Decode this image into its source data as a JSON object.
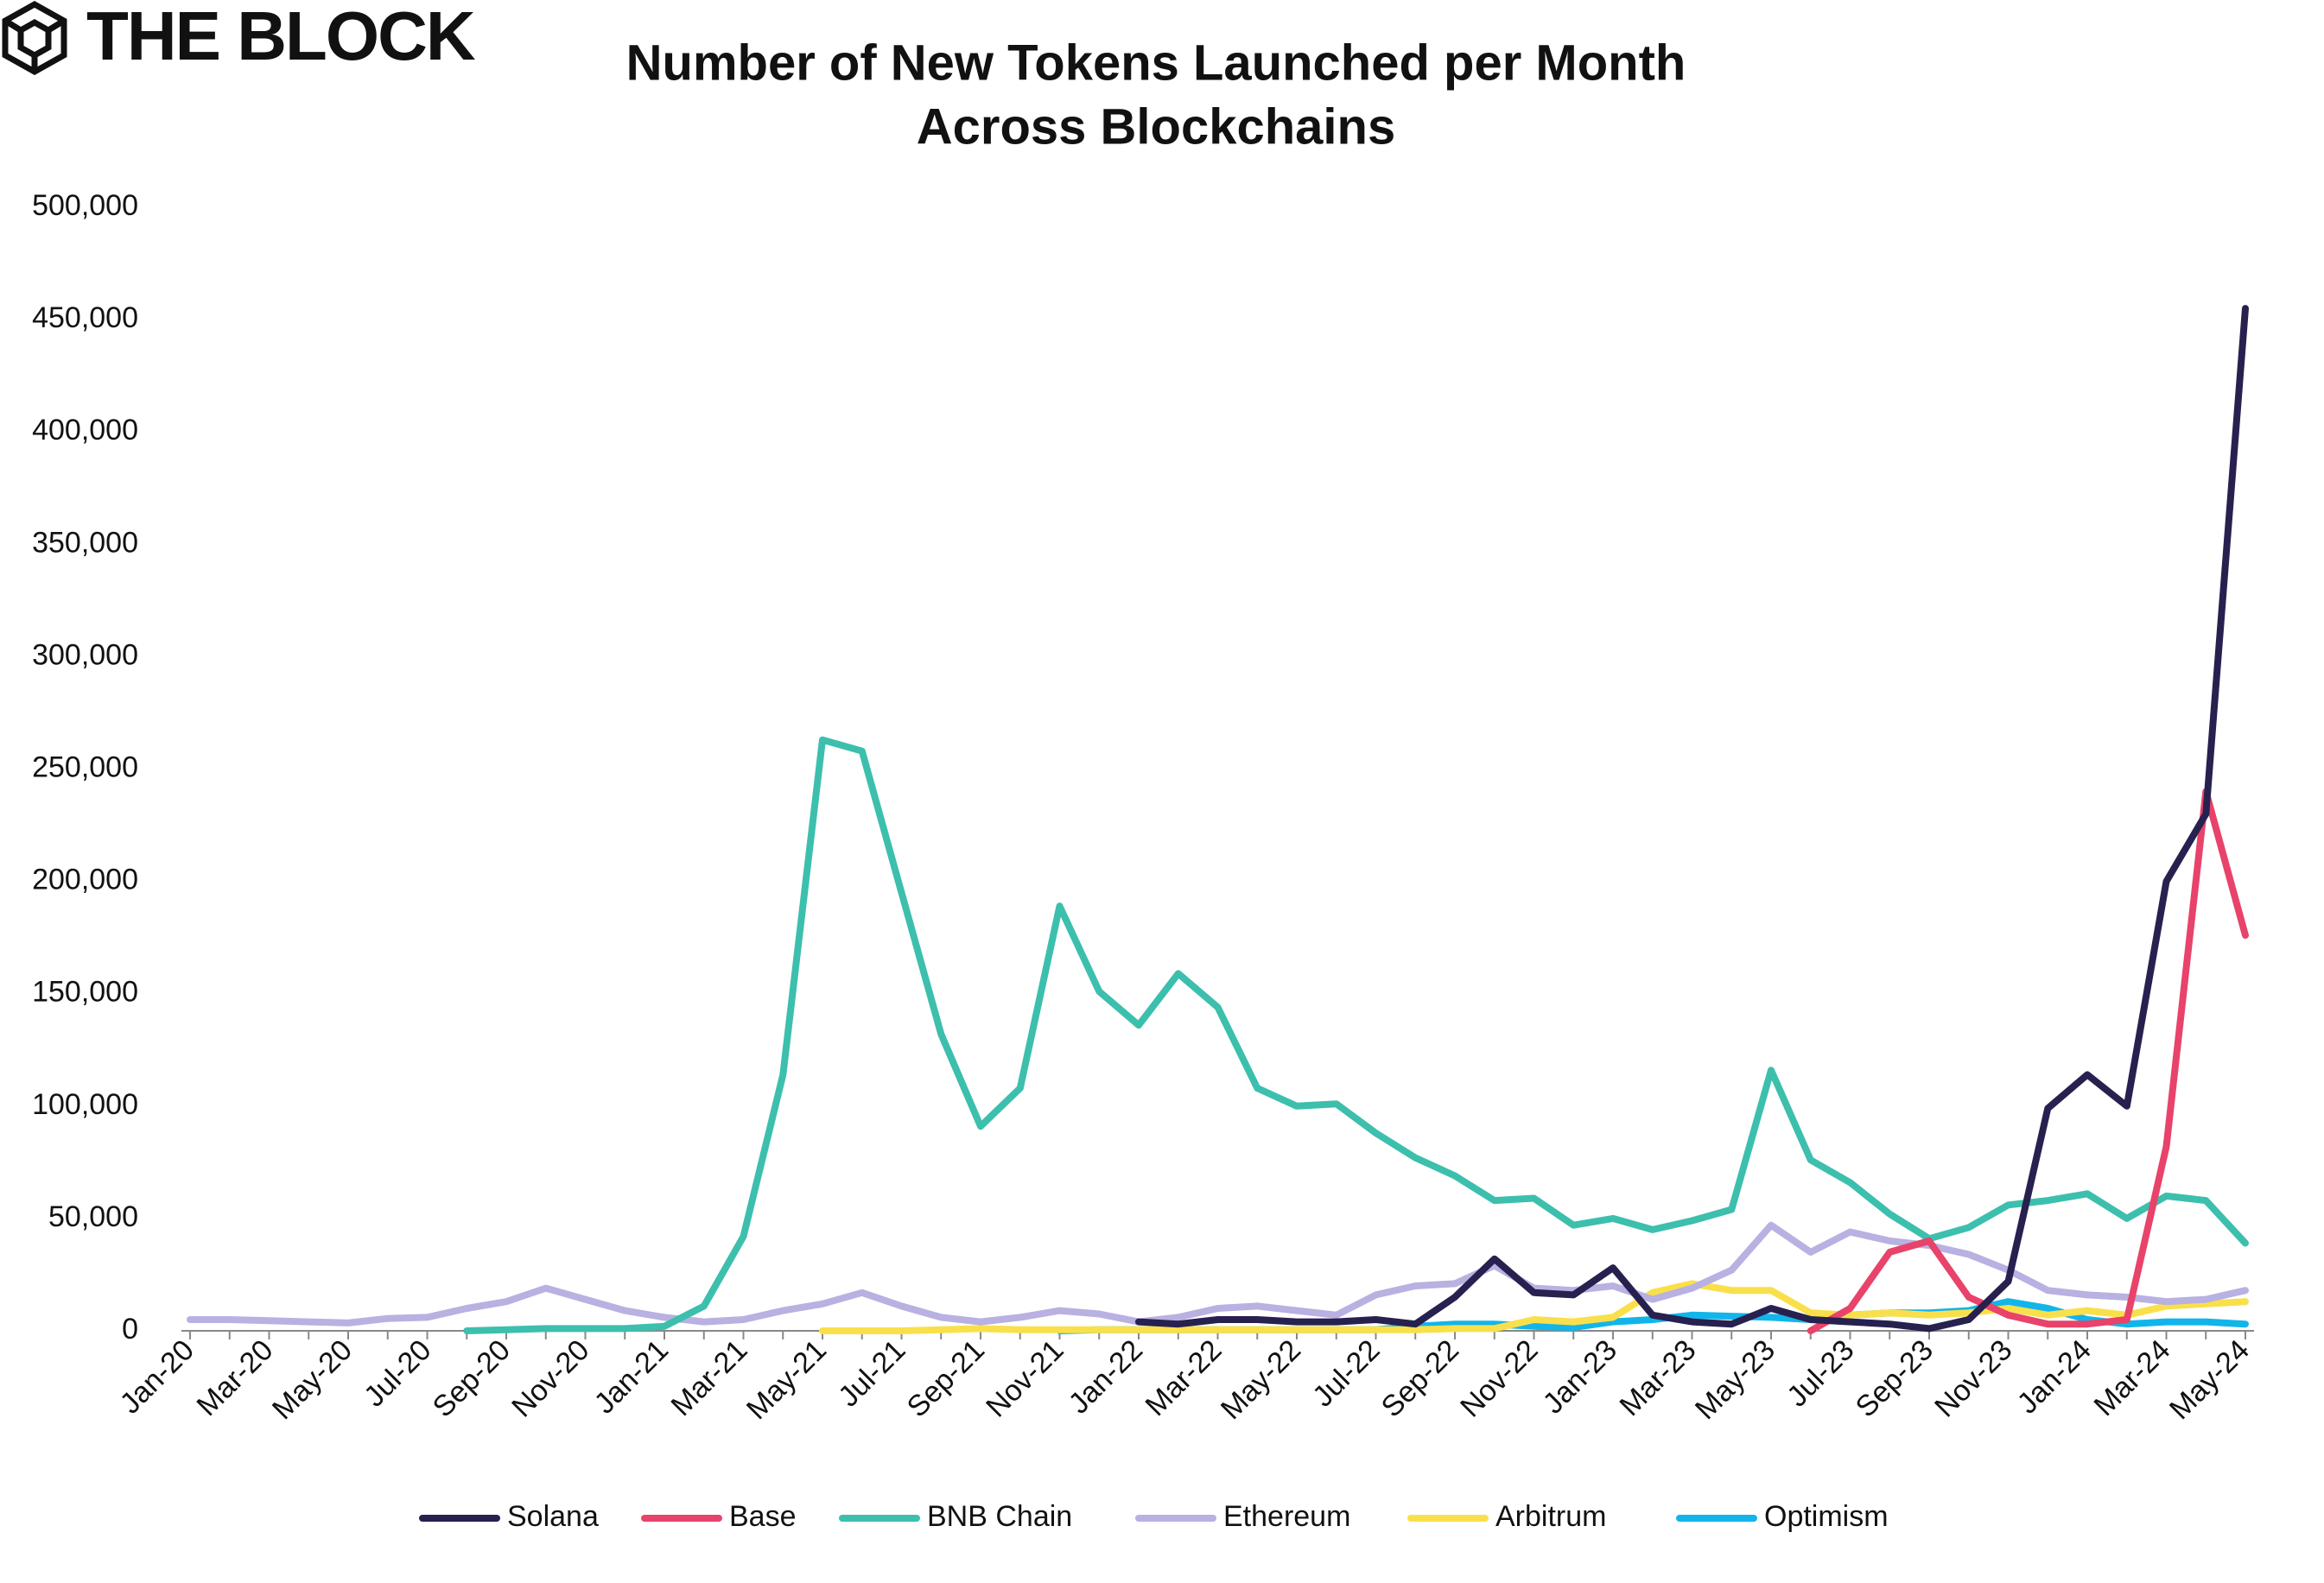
{
  "logo": "THE BLOCK",
  "chart_data": {
    "type": "line",
    "title": [
      "Number of New Tokens Launched per Month",
      "Across Blockchains"
    ],
    "categories": [
      "Jan-20",
      null,
      "Mar-20",
      null,
      "May-20",
      null,
      "Jul-20",
      null,
      "Sep-20",
      null,
      "Nov-20",
      null,
      "Jan-21",
      null,
      "Mar-21",
      null,
      "May-21",
      null,
      "Jul-21",
      null,
      "Sep-21",
      null,
      "Nov-21",
      null,
      "Jan-22",
      null,
      "Mar-22",
      null,
      "May-22",
      null,
      "Jul-22",
      null,
      "Sep-22",
      null,
      "Nov-22",
      null,
      "Jan-23",
      null,
      "Mar-23",
      null,
      "May-23",
      null,
      "Jul-23",
      null,
      "Sep-23",
      null,
      "Nov-23",
      null,
      "Jan-24",
      null,
      "Mar-24",
      null,
      "May-24"
    ],
    "ylim": [
      0,
      500000
    ],
    "yticks": [
      {
        "value": 0,
        "label": "0"
      },
      {
        "value": 50000,
        "label": "50,000"
      },
      {
        "value": 100000,
        "label": "100,000"
      },
      {
        "value": 150000,
        "label": "150,000"
      },
      {
        "value": 200000,
        "label": "200,000"
      },
      {
        "value": 250000,
        "label": "250,000"
      },
      {
        "value": 300000,
        "label": "300,000"
      },
      {
        "value": 350000,
        "label": "350,000"
      },
      {
        "value": 400000,
        "label": "400,000"
      },
      {
        "value": 450000,
        "label": "450,000"
      },
      {
        "value": 500000,
        "label": "500,000"
      }
    ],
    "grid": false,
    "legend": "bottom",
    "series": [
      {
        "name": "Solana",
        "color": "#27214f",
        "values": [
          null,
          null,
          null,
          null,
          null,
          null,
          null,
          null,
          null,
          null,
          null,
          null,
          null,
          null,
          null,
          null,
          null,
          null,
          null,
          null,
          null,
          null,
          null,
          null,
          4000,
          3000,
          5000,
          5000,
          4000,
          4000,
          5000,
          3000,
          15000,
          32000,
          17000,
          16000,
          28000,
          7000,
          4000,
          3000,
          10000,
          5000,
          4000,
          3000,
          1000,
          5000,
          22000,
          99000,
          114000,
          100000,
          200000,
          230000,
          455000
        ]
      },
      {
        "name": "Base",
        "color": "#e8436a",
        "values": [
          null,
          null,
          null,
          null,
          null,
          null,
          null,
          null,
          null,
          null,
          null,
          null,
          null,
          null,
          null,
          null,
          null,
          null,
          null,
          null,
          null,
          null,
          null,
          null,
          null,
          null,
          null,
          null,
          null,
          null,
          null,
          null,
          null,
          null,
          null,
          null,
          null,
          null,
          null,
          null,
          null,
          0,
          10000,
          35000,
          40000,
          15000,
          7000,
          3000,
          3000,
          5000,
          82000,
          240000,
          176000
        ]
      },
      {
        "name": "BNB Chain",
        "color": "#3dbfad",
        "values": [
          null,
          null,
          null,
          null,
          null,
          null,
          null,
          0,
          500,
          1000,
          1000,
          1000,
          2000,
          11000,
          42000,
          114000,
          263000,
          258000,
          195000,
          132000,
          91000,
          108000,
          189000,
          151000,
          136000,
          159000,
          144000,
          108000,
          100000,
          101000,
          88000,
          77000,
          69000,
          58000,
          59000,
          47000,
          50000,
          45000,
          49000,
          54000,
          116000,
          76000,
          66000,
          52000,
          41000,
          46000,
          56000,
          58000,
          61000,
          50000,
          60000,
          58000,
          39000
        ]
      },
      {
        "name": "Ethereum",
        "color": "#b8b1e1",
        "values": [
          5000,
          5000,
          4500,
          4000,
          3500,
          5500,
          6000,
          10000,
          13000,
          19000,
          14000,
          9000,
          6000,
          4000,
          5000,
          9000,
          12000,
          17000,
          11000,
          6000,
          4000,
          6000,
          9000,
          7500,
          4000,
          6000,
          10000,
          11000,
          9000,
          7000,
          16000,
          20000,
          21000,
          29000,
          19000,
          18000,
          20000,
          14000,
          19000,
          27000,
          47000,
          35000,
          44000,
          40000,
          38000,
          34000,
          27000,
          18000,
          16000,
          15000,
          13000,
          14000,
          18000
        ]
      },
      {
        "name": "Arbitrum",
        "color": "#f9e04b",
        "values": [
          null,
          null,
          null,
          null,
          null,
          null,
          null,
          null,
          null,
          null,
          null,
          null,
          null,
          null,
          null,
          null,
          0,
          0,
          0,
          500,
          1000,
          500,
          500,
          500,
          500,
          500,
          500,
          500,
          500,
          500,
          500,
          500,
          1000,
          1000,
          5000,
          4000,
          6000,
          17000,
          21000,
          18000,
          18000,
          8000,
          7000,
          8000,
          7000,
          8000,
          10000,
          7000,
          9000,
          7000,
          11000,
          12000,
          13000
        ]
      },
      {
        "name": "Optimism",
        "color": "#12b5ea",
        "values": [
          null,
          null,
          null,
          null,
          null,
          null,
          null,
          null,
          null,
          null,
          null,
          null,
          null,
          null,
          null,
          null,
          null,
          null,
          null,
          null,
          null,
          null,
          0,
          500,
          500,
          500,
          500,
          500,
          500,
          500,
          500,
          2000,
          3000,
          3000,
          2000,
          1500,
          4000,
          5000,
          7000,
          6500,
          6000,
          5000,
          7000,
          8000,
          8000,
          9000,
          13000,
          10000,
          5000,
          3000,
          4000,
          4000,
          3000
        ]
      }
    ]
  }
}
